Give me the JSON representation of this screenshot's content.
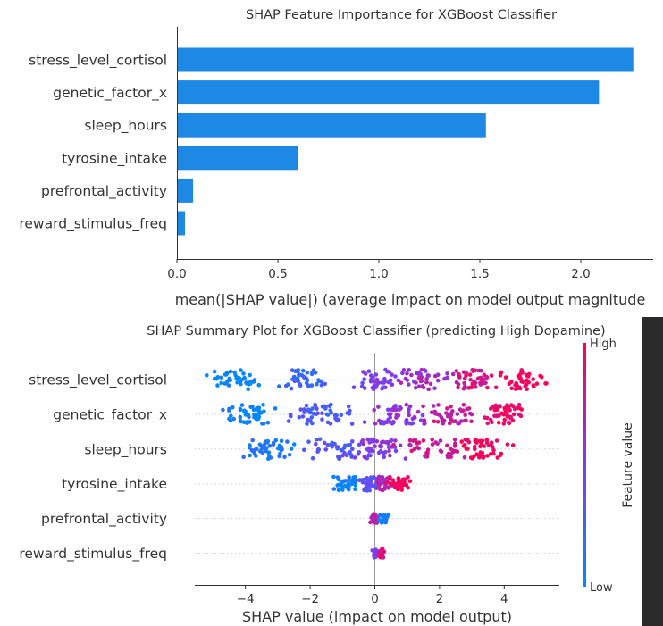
{
  "chart_data": [
    {
      "type": "bar",
      "orientation": "horizontal",
      "title": "SHAP Feature Importance for XGBoost Classifier",
      "xlabel": "mean(|SHAP value|) (average impact on model output magnitude",
      "ylabel": "",
      "categories": [
        "stress_level_cortisol",
        "genetic_factor_x",
        "sleep_hours",
        "tyrosine_intake",
        "prefrontal_activity",
        "reward_stimulus_freq"
      ],
      "values": [
        2.26,
        2.09,
        1.53,
        0.6,
        0.08,
        0.04
      ],
      "xlim": [
        0,
        2.4
      ],
      "xticks": [
        0.0,
        0.5,
        1.0,
        1.5,
        2.0
      ],
      "xtick_labels": [
        "0.0",
        "0.5",
        "1.0",
        "1.5",
        "2.0"
      ],
      "bar_color": "#1e88e5",
      "grid": false
    },
    {
      "type": "scatter",
      "subtype": "beeswarm",
      "title": "SHAP Summary Plot for XGBoost Classifier (predicting High Dopamine)",
      "xlabel": "SHAP value (impact on model output)",
      "ylabel": "",
      "categories": [
        "stress_level_cortisol",
        "genetic_factor_x",
        "sleep_hours",
        "tyrosine_intake",
        "prefrontal_activity",
        "reward_stimulus_freq"
      ],
      "xlim": [
        -5.8,
        5.9
      ],
      "xticks": [
        -4,
        -2,
        0,
        2,
        4
      ],
      "xtick_labels": [
        "−4",
        "−2",
        "0",
        "2",
        "4"
      ],
      "colorbar": {
        "label": "Feature value",
        "high_label": "High",
        "low_label": "Low",
        "low_color": "#008afb",
        "high_color": "#ff0052",
        "mid_color": "#7b3ff2"
      },
      "series": [
        {
          "feature": "stress_level_cortisol",
          "x_min": -5.2,
          "x_max": 5.3,
          "clusters": [
            [
              -4.4,
              0.9,
              0.0
            ],
            [
              -2.2,
              0.6,
              0.25
            ],
            [
              0.1,
              0.7,
              0.5
            ],
            [
              1.5,
              0.8,
              0.65
            ],
            [
              3.1,
              0.6,
              0.85
            ],
            [
              4.6,
              0.5,
              1.0
            ]
          ],
          "count": 260
        },
        {
          "feature": "genetic_factor_x",
          "x_min": -4.7,
          "x_max": 4.9,
          "clusters": [
            [
              -3.9,
              0.7,
              0.05
            ],
            [
              -1.6,
              0.9,
              0.3
            ],
            [
              0.6,
              0.8,
              0.55
            ],
            [
              2.2,
              0.9,
              0.75
            ],
            [
              4.0,
              0.6,
              0.95
            ]
          ],
          "count": 260
        },
        {
          "feature": "sleep_hours",
          "x_min": -4.1,
          "x_max": 4.5,
          "clusters": [
            [
              -3.2,
              0.7,
              0.1
            ],
            [
              -1.2,
              0.9,
              0.35
            ],
            [
              0.2,
              0.6,
              0.55
            ],
            [
              1.8,
              0.9,
              0.8
            ],
            [
              3.4,
              0.7,
              1.0
            ]
          ],
          "count": 230
        },
        {
          "feature": "tyrosine_intake",
          "x_min": -1.5,
          "x_max": 1.6,
          "clusters": [
            [
              -0.9,
              0.35,
              0.05
            ],
            [
              -0.2,
              0.25,
              0.35
            ],
            [
              0.3,
              0.25,
              0.7
            ],
            [
              0.8,
              0.3,
              0.95
            ]
          ],
          "count": 140
        },
        {
          "feature": "prefrontal_activity",
          "x_min": -0.3,
          "x_max": 0.6,
          "clusters": [
            [
              0.0,
              0.1,
              0.7
            ],
            [
              0.3,
              0.15,
              0.1
            ]
          ],
          "count": 60
        },
        {
          "feature": "reward_stimulus_freq",
          "x_min": -0.3,
          "x_max": 0.3,
          "clusters": [
            [
              0.0,
              0.08,
              0.5
            ],
            [
              0.2,
              0.06,
              0.9
            ]
          ],
          "count": 40
        }
      ]
    }
  ]
}
